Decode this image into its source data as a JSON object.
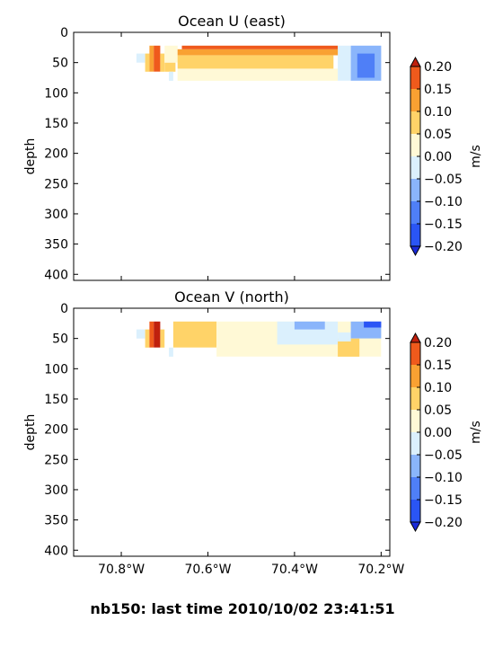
{
  "figure_title": "nb150: last time 2010/10/02 23:41:51",
  "colors": {
    "levels": [
      {
        "from": -0.2,
        "to": -0.15,
        "color": "#2a55f5"
      },
      {
        "from": -0.15,
        "to": -0.1,
        "color": "#4f7ff7"
      },
      {
        "from": -0.1,
        "to": -0.05,
        "color": "#8ab5fb"
      },
      {
        "from": -0.05,
        "to": 0.0,
        "color": "#dbf0fd"
      },
      {
        "from": 0.0,
        "to": 0.05,
        "color": "#fff9d6"
      },
      {
        "from": 0.05,
        "to": 0.1,
        "color": "#ffd368"
      },
      {
        "from": 0.1,
        "to": 0.15,
        "color": "#f9a132"
      },
      {
        "from": 0.15,
        "to": 0.2,
        "color": "#ef5a1c"
      }
    ],
    "under": "#1a2ad9",
    "over": "#c0200d",
    "frame": "#000000"
  },
  "chart_data": [
    {
      "type": "heatmap",
      "title": "Ocean U (east)",
      "ylabel": "depth",
      "xlabel": "",
      "xlim": [
        -70.91,
        -70.18
      ],
      "ylim": [
        410,
        0
      ],
      "x_ticks": [
        -70.8,
        -70.6,
        -70.4,
        -70.2
      ],
      "x_tick_labels": [],
      "y_ticks": [
        0,
        50,
        100,
        150,
        200,
        250,
        300,
        350,
        400
      ],
      "y_tick_labels": [
        "0",
        "50",
        "100",
        "150",
        "200",
        "250",
        "300",
        "350",
        "400"
      ],
      "colorbar": {
        "label": "m/s",
        "ticks": [
          0.2,
          0.15,
          0.1,
          0.05,
          0.0,
          -0.05,
          -0.1,
          -0.15,
          -0.2
        ],
        "tick_labels": [
          "0.20",
          "0.15",
          "0.10",
          "0.05",
          "0.00",
          "−0.05",
          "−0.10",
          "−0.15",
          "−0.20"
        ],
        "extend": "both"
      },
      "cells": [
        {
          "x": [
            -70.765,
            -70.745
          ],
          "depth": [
            35,
            50
          ],
          "u": -0.02
        },
        {
          "x": [
            -70.745,
            -70.735
          ],
          "depth": [
            35,
            65
          ],
          "u": 0.07
        },
        {
          "x": [
            -70.735,
            -70.725
          ],
          "depth": [
            22,
            65
          ],
          "u": 0.12
        },
        {
          "x": [
            -70.725,
            -70.71
          ],
          "depth": [
            22,
            65
          ],
          "u": 0.17
        },
        {
          "x": [
            -70.71,
            -70.7
          ],
          "depth": [
            35,
            65
          ],
          "u": 0.08
        },
        {
          "x": [
            -70.7,
            -70.675
          ],
          "depth": [
            50,
            65
          ],
          "u": 0.07
        },
        {
          "x": [
            -70.7,
            -70.67
          ],
          "depth": [
            22,
            50
          ],
          "u": 0.03
        },
        {
          "x": [
            -70.69,
            -70.68
          ],
          "depth": [
            65,
            80
          ],
          "u": -0.02
        },
        {
          "x": [
            -70.67,
            -70.3
          ],
          "depth": [
            60,
            80
          ],
          "u": 0.02
        },
        {
          "x": [
            -70.67,
            -70.31
          ],
          "depth": [
            38,
            60
          ],
          "u": 0.07
        },
        {
          "x": [
            -70.67,
            -70.28
          ],
          "depth": [
            28,
            38
          ],
          "u": 0.12
        },
        {
          "x": [
            -70.66,
            -70.3
          ],
          "depth": [
            22,
            28
          ],
          "u": 0.17
        },
        {
          "x": [
            -70.3,
            -70.27
          ],
          "depth": [
            22,
            80
          ],
          "u": -0.03
        },
        {
          "x": [
            -70.27,
            -70.2
          ],
          "depth": [
            22,
            80
          ],
          "u": -0.08
        },
        {
          "x": [
            -70.255,
            -70.215
          ],
          "depth": [
            35,
            75
          ],
          "u": -0.13
        }
      ]
    },
    {
      "type": "heatmap",
      "title": "Ocean V (north)",
      "ylabel": "depth",
      "xlabel": "",
      "xlim": [
        -70.91,
        -70.18
      ],
      "ylim": [
        410,
        0
      ],
      "x_ticks": [
        -70.8,
        -70.6,
        -70.4,
        -70.2
      ],
      "x_tick_labels": [
        "70.8°W",
        "70.6°W",
        "70.4°W",
        "70.2°W"
      ],
      "y_ticks": [
        0,
        50,
        100,
        150,
        200,
        250,
        300,
        350,
        400
      ],
      "y_tick_labels": [
        "0",
        "50",
        "100",
        "150",
        "200",
        "250",
        "300",
        "350",
        "400"
      ],
      "colorbar": {
        "label": "m/s",
        "ticks": [
          0.2,
          0.15,
          0.1,
          0.05,
          0.0,
          -0.05,
          -0.1,
          -0.15,
          -0.2
        ],
        "tick_labels": [
          "0.20",
          "0.15",
          "0.10",
          "0.05",
          "0.00",
          "−0.05",
          "−0.10",
          "−0.15",
          "−0.20"
        ],
        "extend": "both"
      },
      "cells": [
        {
          "x": [
            -70.765,
            -70.745
          ],
          "depth": [
            35,
            50
          ],
          "u": -0.02
        },
        {
          "x": [
            -70.745,
            -70.735
          ],
          "depth": [
            35,
            65
          ],
          "u": 0.07
        },
        {
          "x": [
            -70.735,
            -70.725
          ],
          "depth": [
            22,
            65
          ],
          "u": 0.17
        },
        {
          "x": [
            -70.725,
            -70.71
          ],
          "depth": [
            22,
            65
          ],
          "u": 0.22
        },
        {
          "x": [
            -70.71,
            -70.7
          ],
          "depth": [
            35,
            65
          ],
          "u": 0.08
        },
        {
          "x": [
            -70.69,
            -70.68
          ],
          "depth": [
            65,
            80
          ],
          "u": -0.02
        },
        {
          "x": [
            -70.68,
            -70.58
          ],
          "depth": [
            22,
            65
          ],
          "u": 0.07
        },
        {
          "x": [
            -70.58,
            -70.2
          ],
          "depth": [
            22,
            80
          ],
          "u": 0.02
        },
        {
          "x": [
            -70.44,
            -70.3
          ],
          "depth": [
            22,
            60
          ],
          "u": -0.03
        },
        {
          "x": [
            -70.4,
            -70.33
          ],
          "depth": [
            22,
            35
          ],
          "u": -0.08
        },
        {
          "x": [
            -70.3,
            -70.25
          ],
          "depth": [
            50,
            80
          ],
          "u": 0.07
        },
        {
          "x": [
            -70.3,
            -70.27
          ],
          "depth": [
            40,
            55
          ],
          "u": -0.02
        },
        {
          "x": [
            -70.27,
            -70.2
          ],
          "depth": [
            22,
            50
          ],
          "u": -0.06
        },
        {
          "x": [
            -70.24,
            -70.2
          ],
          "depth": [
            22,
            32
          ],
          "u": -0.16
        }
      ]
    }
  ]
}
